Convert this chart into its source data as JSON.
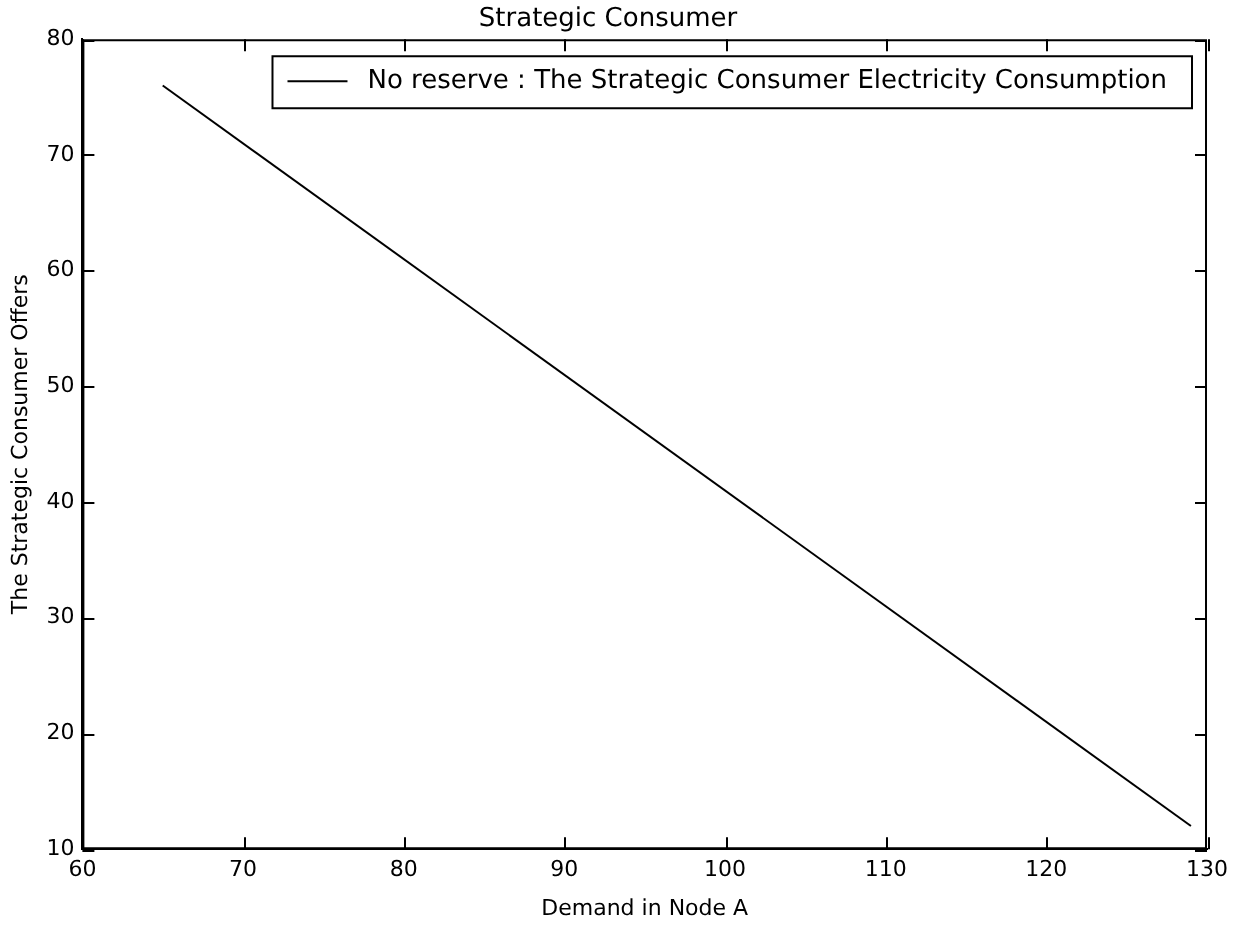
{
  "chart_data": {
    "type": "line",
    "title": "Strategic Consumer",
    "xlabel": "Demand in Node A",
    "ylabel": "The Strategic Consumer Offers",
    "series": [
      {
        "name": "No reserve : The Strategic Consumer Electricity Consumption",
        "color": "#000000",
        "x": [
          65,
          129
        ],
        "values": [
          76,
          12
        ]
      }
    ],
    "xlim": [
      60,
      130
    ],
    "xticks": [
      60,
      70,
      80,
      90,
      100,
      110,
      120,
      130
    ],
    "ylim": [
      10,
      80
    ],
    "yticks": [
      10,
      20,
      30,
      40,
      50,
      60,
      70,
      80
    ],
    "grid": false,
    "legend": "top right",
    "marker": "none",
    "line_style": "solid"
  }
}
